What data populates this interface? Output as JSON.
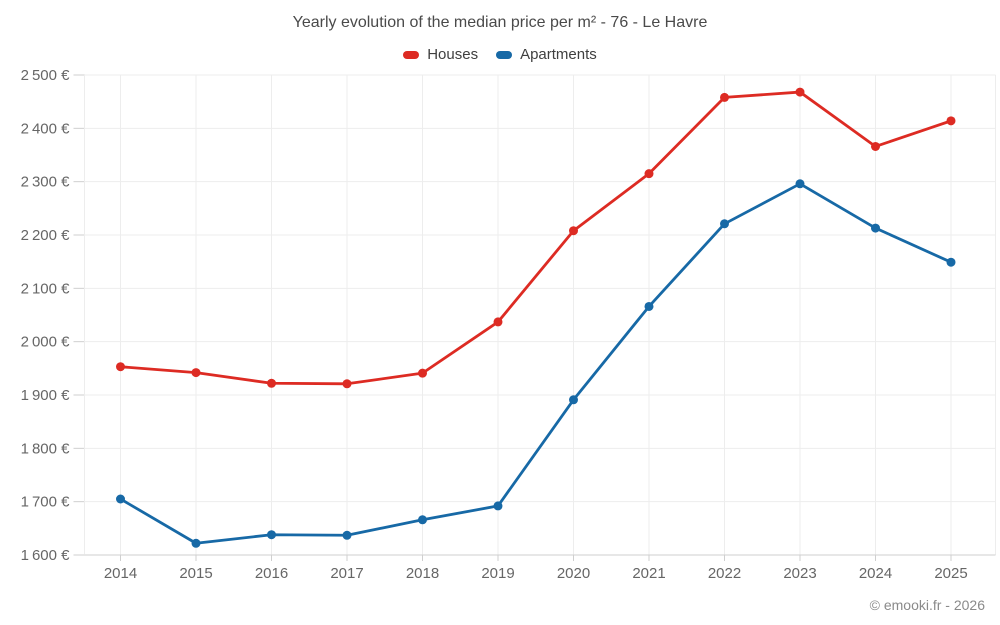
{
  "chart": {
    "title": "Yearly evolution of the median price per m² - 76 - Le Havre"
  },
  "footer": {
    "credit": "© emooki.fr - 2026"
  },
  "chart_data": {
    "type": "line",
    "x": [
      2014,
      2015,
      2016,
      2017,
      2018,
      2019,
      2020,
      2021,
      2022,
      2023,
      2024,
      2025
    ],
    "series": [
      {
        "name": "Houses",
        "color": "#dd2b23",
        "values": [
          1953,
          1942,
          1922,
          1921,
          1941,
          2037,
          2208,
          2315,
          2458,
          2468,
          2366,
          2414
        ]
      },
      {
        "name": "Apartments",
        "color": "#1769a6",
        "values": [
          1705,
          1622,
          1638,
          1637,
          1666,
          1692,
          1891,
          2066,
          2221,
          2296,
          2213,
          2149
        ]
      }
    ],
    "title": "Yearly evolution of the median price per m² - 76 - Le Havre",
    "xlabel": "",
    "ylabel": "",
    "ylim": [
      1600,
      2500
    ],
    "ytick_step": 100,
    "y_tick_suffix": " €",
    "grid": true,
    "legend_position": "top",
    "colors": {
      "grid_line": "#ededed",
      "axis_line": "#cfcfcf",
      "tick_label": "#666666"
    }
  }
}
